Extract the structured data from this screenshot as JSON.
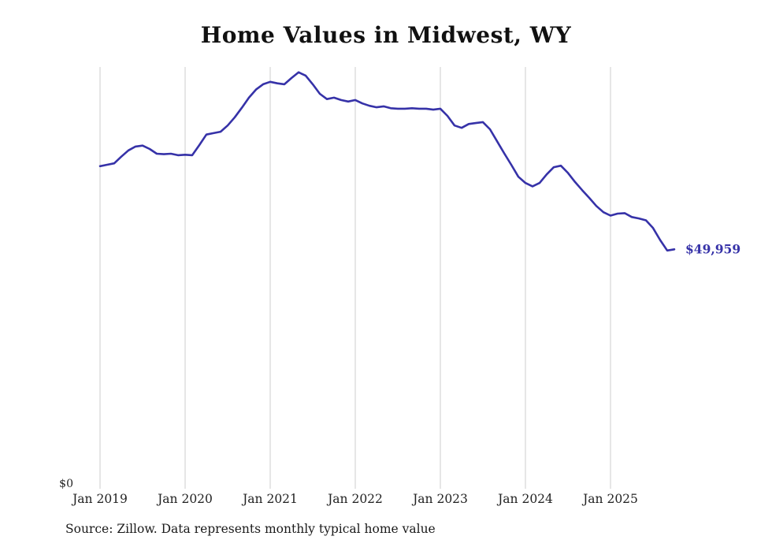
{
  "chart_data": {
    "type": "line",
    "title": "Home Values in Midwest, WY",
    "ylabel": "",
    "xlabel": "",
    "y_zero_label": "$0",
    "end_label": "$49,959",
    "end_value": 49959,
    "source_note": "Source: Zillow. Data represents monthly typical home value",
    "x_ticks": [
      "Jan 2019",
      "Jan 2020",
      "Jan 2021",
      "Jan 2022",
      "Jan 2023",
      "Jan 2024",
      "Jan 2025"
    ],
    "x_tick_month_indices": [
      0,
      12,
      24,
      36,
      48,
      60,
      72
    ],
    "x_start": "Jan 2019",
    "x_end": "Oct 2025",
    "x_frequency": "monthly",
    "ylim": [
      0,
      88000
    ],
    "grid": "vertical-only",
    "legend": "none",
    "line_color": "#3632a8",
    "grid_color": "#cccccc",
    "values": [
      67300,
      67600,
      67900,
      69300,
      70600,
      71400,
      71600,
      70900,
      69900,
      69800,
      69900,
      69600,
      69700,
      69600,
      71700,
      73900,
      74200,
      74500,
      75800,
      77500,
      79500,
      81600,
      83300,
      84400,
      84900,
      84600,
      84400,
      85700,
      86900,
      86200,
      84400,
      82400,
      81300,
      81600,
      81100,
      80800,
      81100,
      80400,
      79900,
      79600,
      79800,
      79400,
      79300,
      79300,
      79400,
      79300,
      79300,
      79100,
      79300,
      77800,
      75800,
      75300,
      76100,
      76300,
      76500,
      75000,
      72500,
      70000,
      67600,
      65100,
      63800,
      63100,
      63800,
      65600,
      67100,
      67400,
      65900,
      64000,
      62300,
      60700,
      59000,
      57700,
      57000,
      57400,
      57500,
      56700,
      56400,
      56000,
      54400,
      51900,
      49700,
      49959
    ]
  }
}
